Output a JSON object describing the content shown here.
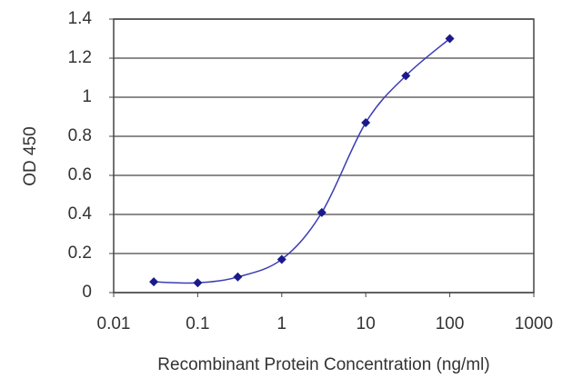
{
  "chart_data": {
    "type": "line",
    "markers": true,
    "xscale": "log",
    "xlabel": "Recombinant Protein Concentration (ng/ml)",
    "ylabel": "OD 450",
    "x": [
      0.03,
      0.1,
      0.3,
      1,
      3,
      10,
      30,
      100
    ],
    "values": [
      0.055,
      0.05,
      0.08,
      0.17,
      0.41,
      0.87,
      1.11,
      1.3
    ],
    "color": "#1a1a8c",
    "line_color": "#3c3cb4",
    "xlim": [
      0.01,
      1000
    ],
    "xticks": [
      0.01,
      0.1,
      1,
      10,
      100,
      1000
    ],
    "ylim": [
      0,
      1.4
    ],
    "yticks": [
      0,
      0.2,
      0.4,
      0.6,
      0.8,
      1,
      1.2,
      1.4
    ],
    "grid": true
  }
}
